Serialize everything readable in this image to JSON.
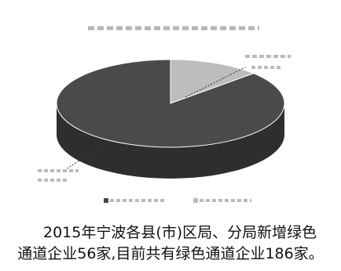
{
  "chart_data": {
    "type": "pie",
    "style": "3d",
    "slices": [
      {
        "value": 0.13,
        "color": "#bdbdbd"
      },
      {
        "value": 0.87,
        "color": "#4a4a4a"
      }
    ],
    "legend_position": "bottom"
  },
  "caption": {
    "line1": "2015年宁波各县(市)区局、分局新增绿色",
    "line2": "通道企业56家,目前共有绿色通道企业186家。"
  }
}
